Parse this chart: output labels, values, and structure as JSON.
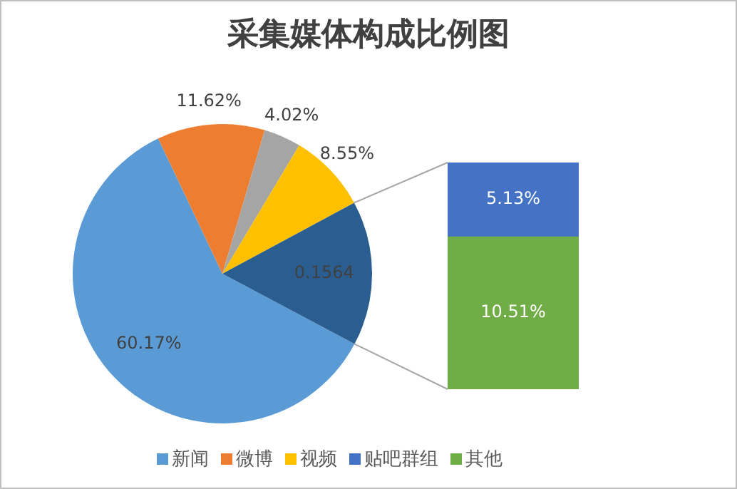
{
  "chart_data": [
    {
      "type": "pie",
      "title": "采集媒体构成比例图",
      "categories": [
        "新闻",
        "微博",
        null,
        "视频",
        null
      ],
      "values": [
        0.6017,
        0.1162,
        0.0402,
        0.0855,
        0.1564
      ],
      "value_labels": [
        "60.17%",
        "11.62%",
        "4.02%",
        "8.55%",
        "0.1564"
      ],
      "colors": [
        "#5b9bd5",
        "#ed7d31",
        "#a5a5a5",
        "#ffc000",
        "#2a5d90"
      ],
      "legend": "bottom"
    },
    {
      "type": "bar",
      "stacked": true,
      "categories": [
        null
      ],
      "series": [
        {
          "name": "其他",
          "color": "#70ad47",
          "values": [
            10.51
          ],
          "value_labels": [
            "10.51%"
          ]
        },
        {
          "name": "贴吧群组",
          "color": "#4472c4",
          "values": [
            5.13
          ],
          "value_labels": [
            "5.13%"
          ]
        }
      ],
      "ylim": [
        0,
        15.64
      ],
      "tick_labels": false,
      "legend": "bottom"
    }
  ]
}
